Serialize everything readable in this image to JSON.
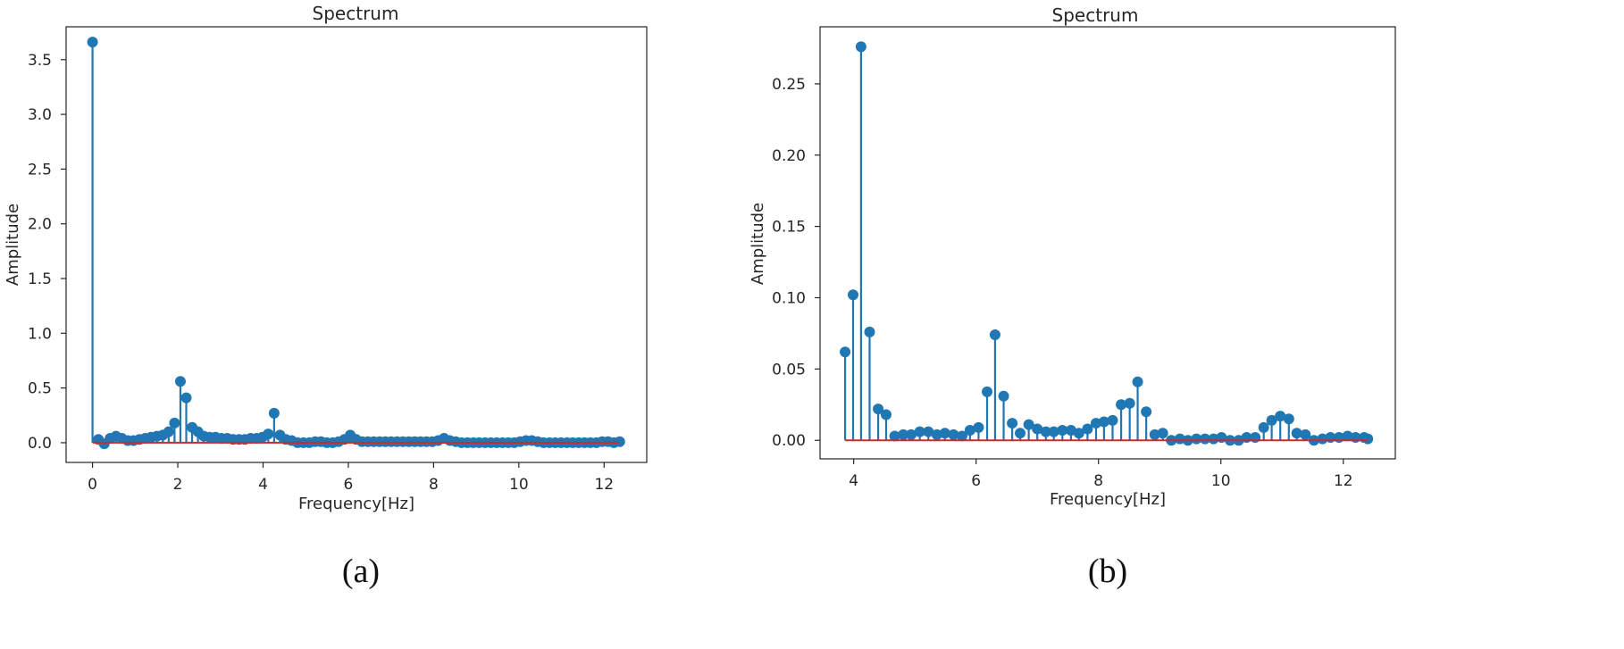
{
  "chart_data": [
    {
      "type": "stem",
      "panel_label": "(a)",
      "title": "Spectrum",
      "xlabel": "Frequency[Hz]",
      "ylabel": "Amplitude",
      "xlim": [
        -0.62,
        13.0
      ],
      "ylim": [
        -0.18,
        3.8
      ],
      "xticks": [
        "0",
        "2",
        "4",
        "6",
        "8",
        "10",
        "12"
      ],
      "xtick_values": [
        0,
        2,
        4,
        6,
        8,
        10,
        12
      ],
      "yticks": [
        "0.0",
        "0.5",
        "1.0",
        "1.5",
        "2.0",
        "2.5",
        "3.0",
        "3.5"
      ],
      "ytick_values": [
        0,
        0.5,
        1.0,
        1.5,
        2.0,
        2.5,
        3.0,
        3.5
      ],
      "grid": false,
      "baseline": 0,
      "x_step": 0.1374,
      "values": [
        3.66,
        0.03,
        -0.01,
        0.04,
        0.06,
        0.04,
        0.02,
        0.02,
        0.03,
        0.04,
        0.05,
        0.06,
        0.07,
        0.1,
        0.18,
        0.56,
        0.41,
        0.14,
        0.1,
        0.06,
        0.05,
        0.05,
        0.04,
        0.04,
        0.03,
        0.03,
        0.03,
        0.04,
        0.04,
        0.05,
        0.08,
        0.27,
        0.07,
        0.03,
        0.02,
        0.0,
        0.0,
        0.0,
        0.01,
        0.01,
        0.0,
        0.0,
        0.01,
        0.03,
        0.07,
        0.03,
        0.01,
        0.01,
        0.01,
        0.01,
        0.01,
        0.01,
        0.01,
        0.01,
        0.01,
        0.01,
        0.01,
        0.01,
        0.01,
        0.02,
        0.04,
        0.02,
        0.01,
        0.0,
        0.0,
        0.0,
        0.0,
        0.0,
        0.0,
        0.0,
        0.0,
        0.0,
        0.0,
        0.01,
        0.02,
        0.02,
        0.01,
        0.0,
        0.0,
        0.0,
        0.0,
        0.0,
        0.0,
        0.0,
        0.0,
        0.0,
        0.0,
        0.01,
        0.01,
        0.0,
        0.01
      ],
      "marker_color": "#1f77b4",
      "baseline_color": "#d62728"
    },
    {
      "type": "stem",
      "panel_label": "(b)",
      "title": "Spectrum",
      "xlabel": "Frequency[Hz]",
      "ylabel": "Amplitude",
      "xlim": [
        3.45,
        12.85
      ],
      "ylim": [
        -0.013,
        0.29
      ],
      "xticks": [
        "4",
        "6",
        "8",
        "10",
        "12"
      ],
      "xtick_values": [
        4,
        6,
        8,
        10,
        12
      ],
      "yticks": [
        "0.00",
        "0.05",
        "0.10",
        "0.15",
        "0.20",
        "0.25"
      ],
      "ytick_values": [
        0,
        0.05,
        0.1,
        0.15,
        0.2,
        0.25
      ],
      "grid": false,
      "baseline": 0,
      "x": [
        3.86,
        3.99,
        4.12,
        4.26,
        4.4,
        4.53,
        4.67,
        4.81,
        4.94,
        5.08,
        5.22,
        5.36,
        5.49,
        5.63,
        5.77,
        5.9,
        6.04,
        6.18,
        6.31,
        6.45,
        6.59,
        6.72,
        6.86,
        7.0,
        7.14,
        7.27,
        7.41,
        7.55,
        7.68,
        7.82,
        7.96,
        8.09,
        8.23,
        8.37,
        8.51,
        8.64,
        8.78,
        8.92,
        9.05,
        9.19,
        9.33,
        9.46,
        9.6,
        9.74,
        9.88,
        10.01,
        10.15,
        10.29,
        10.42,
        10.56,
        10.7,
        10.83,
        10.97,
        11.11,
        11.24,
        11.38,
        11.52,
        11.66,
        11.79,
        11.93,
        12.07,
        12.2,
        12.34,
        12.4
      ],
      "values": [
        0.062,
        0.102,
        0.276,
        0.076,
        0.022,
        0.018,
        0.003,
        0.004,
        0.004,
        0.006,
        0.006,
        0.004,
        0.005,
        0.004,
        0.003,
        0.007,
        0.009,
        0.034,
        0.074,
        0.031,
        0.012,
        0.005,
        0.011,
        0.008,
        0.006,
        0.006,
        0.007,
        0.007,
        0.005,
        0.008,
        0.012,
        0.013,
        0.014,
        0.025,
        0.026,
        0.041,
        0.02,
        0.004,
        0.005,
        0.0,
        0.001,
        0.0,
        0.001,
        0.001,
        0.001,
        0.002,
        0.0,
        0.0,
        0.002,
        0.002,
        0.009,
        0.014,
        0.017,
        0.015,
        0.005,
        0.004,
        0.0,
        0.001,
        0.002,
        0.002,
        0.003,
        0.002,
        0.002,
        0.001
      ],
      "marker_color": "#1f77b4",
      "baseline_color": "#d62728"
    }
  ]
}
